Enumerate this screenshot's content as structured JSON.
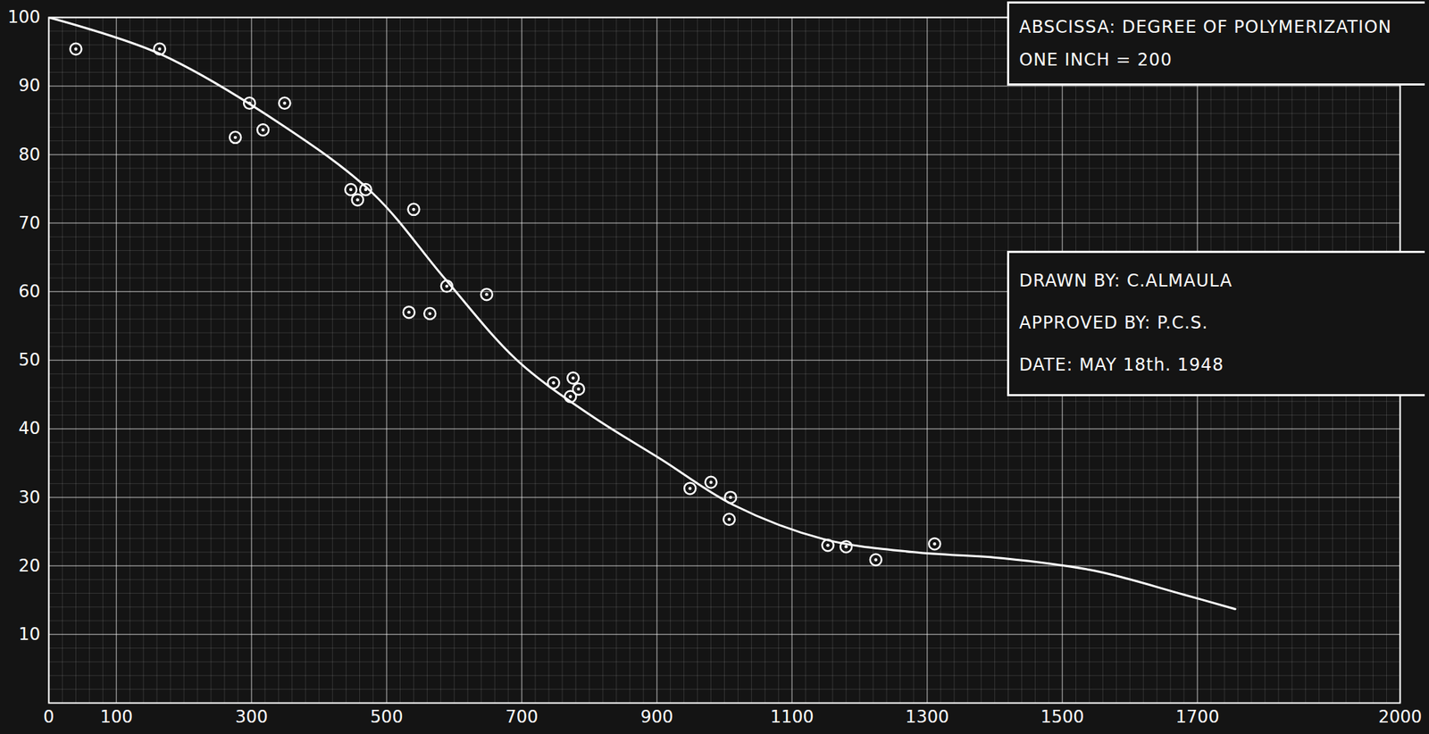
{
  "chart_data": {
    "type": "scatter",
    "annotations": [
      [
        "ABSCISSA: DEGREE OF POLYMERIZATION",
        "ONE INCH = 200"
      ],
      [
        "DRAWN BY: C.ALMAULA",
        "APPROVED BY: P.C.S.",
        "DATE: MAY 18th. 1948"
      ]
    ],
    "xlim": [
      0,
      2000
    ],
    "xticks": [
      0,
      100,
      300,
      500,
      700,
      900,
      1100,
      1300,
      1500,
      1700,
      2000
    ],
    "ylim": [
      0,
      100
    ],
    "yticks": [
      10,
      20,
      30,
      40,
      50,
      60,
      70,
      80,
      90,
      100
    ],
    "grid": true,
    "series": [
      {
        "type": "scatter",
        "marker": "circle",
        "color": "#ffffff",
        "x": [
          40,
          164,
          297,
          349,
          276,
          317,
          447,
          469,
          457,
          540,
          533,
          564,
          589,
          648,
          747,
          776,
          784,
          772,
          949,
          980,
          1009,
          1007,
          1153,
          1180,
          1224,
          1311
        ],
        "values": [
          95.4,
          95.4,
          87.5,
          87.5,
          82.5,
          83.6,
          74.9,
          74.9,
          73.4,
          72.0,
          57.0,
          56.8,
          60.8,
          59.6,
          46.7,
          47.4,
          45.8,
          44.7,
          31.3,
          32.2,
          30.0,
          26.8,
          23.0,
          22.8,
          20.9,
          23.2
        ]
      },
      {
        "type": "line",
        "line_style": "solid",
        "color": "#ffffff",
        "x": [
          0,
          164,
          347,
          480,
          587,
          693,
          800,
          907,
          1013,
          1147,
          1280,
          1413,
          1547,
          1680,
          1756
        ],
        "values": [
          100,
          94.7,
          84.2,
          74.3,
          61.8,
          50.0,
          42.1,
          35.5,
          28.9,
          23.9,
          22.0,
          21.1,
          19.3,
          15.8,
          13.7
        ]
      }
    ]
  }
}
